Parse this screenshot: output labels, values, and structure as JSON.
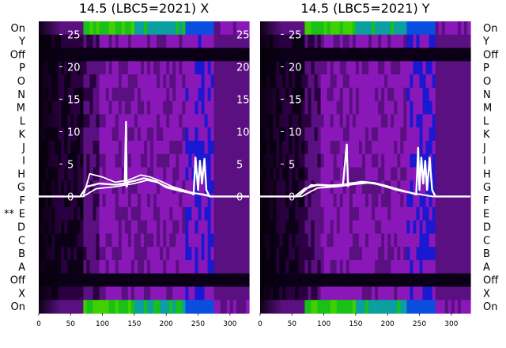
{
  "chart_data": {
    "type": "heatmap",
    "row_labels": [
      "On",
      "Y",
      "Off",
      "P",
      "O",
      "N",
      "M",
      "L",
      "K",
      "J",
      "I",
      "H",
      "G",
      "F",
      "E",
      "D",
      "C",
      "B",
      "A",
      "Off",
      "X",
      "On"
    ],
    "marked_row": "E",
    "marked_row_prefix": "**",
    "x_ticks": [
      0,
      50,
      100,
      150,
      200,
      250,
      300
    ],
    "xlim": [
      0,
      330
    ],
    "overlay_ticks": [
      0,
      5,
      10,
      15,
      20,
      25
    ],
    "overlay_ylim": [
      -18,
      27
    ],
    "colormap": [
      "#0b0016",
      "#2a0040",
      "#5a1080",
      "#8a18b8",
      "#1a18d0",
      "#0a4ee0",
      "#0aa0a0",
      "#18c018",
      "#40d000"
    ],
    "panels": [
      {
        "title": "14.5 (LBC5=2021) X",
        "line_color": "#ffffff",
        "series": [
          {
            "x": [
              0,
              65,
              75,
              95,
              120,
              135,
              137,
              138,
              140,
              150,
              165,
              175,
              185,
              200,
              220,
              235,
              240,
              243,
              246,
              250,
              253,
              256,
              260,
              263,
              268,
              275,
              330
            ],
            "y": [
              0,
              0,
              1.5,
              2.0,
              1.8,
              2.0,
              11.5,
              1.5,
              2.2,
              2.4,
              2.8,
              2.6,
              2.3,
              1.4,
              0.9,
              0.6,
              0.5,
              0.3,
              6,
              1,
              5.5,
              2,
              5.8,
              1,
              0,
              0,
              0
            ]
          },
          {
            "x": [
              0,
              70,
              80,
              100,
              120,
              140,
              160,
              175,
              190,
              210,
              230,
              240,
              260,
              270,
              330
            ],
            "y": [
              0,
              0,
              3.5,
              3.0,
              2.2,
              2.5,
              3.3,
              3.0,
              2.4,
              1.5,
              0.9,
              0.6,
              0.3,
              0,
              0
            ]
          },
          {
            "x": [
              0,
              70,
              90,
              120,
              150,
              170,
              185,
              200,
              220,
              240,
              270,
              330
            ],
            "y": [
              0,
              0,
              1.2,
              1.5,
              2.0,
              2.5,
              2.2,
              1.6,
              1.0,
              0.6,
              0,
              0
            ]
          }
        ]
      },
      {
        "title": "14.5 (LBC5=2021) Y",
        "line_color": "#ffffff",
        "series": [
          {
            "x": [
              0,
              55,
              70,
              90,
              110,
              130,
              136,
              138,
              140,
              150,
              165,
              180,
              195,
              215,
              235,
              245,
              248,
              250,
              253,
              256,
              259,
              262,
              266,
              270,
              275,
              330
            ],
            "y": [
              0,
              0,
              1.2,
              1.8,
              1.7,
              1.8,
              8.0,
              1.6,
              2.0,
              2.1,
              2.2,
              2.0,
              1.6,
              1.0,
              0.6,
              0.3,
              7.5,
              1,
              6,
              2,
              5.5,
              1,
              6,
              1,
              0,
              0
            ]
          },
          {
            "x": [
              0,
              60,
              80,
              110,
              140,
              160,
              180,
              200,
              220,
              240,
              270,
              330
            ],
            "y": [
              0,
              0,
              1.8,
              1.6,
              2.0,
              2.3,
              2.1,
              1.6,
              1.0,
              0.5,
              0,
              0
            ]
          },
          {
            "x": [
              0,
              65,
              90,
              120,
              150,
              170,
              190,
              210,
              235,
              270,
              330
            ],
            "y": [
              0,
              0,
              1.3,
              1.5,
              1.9,
              2.1,
              1.8,
              1.3,
              0.6,
              0,
              0
            ]
          }
        ]
      }
    ]
  }
}
